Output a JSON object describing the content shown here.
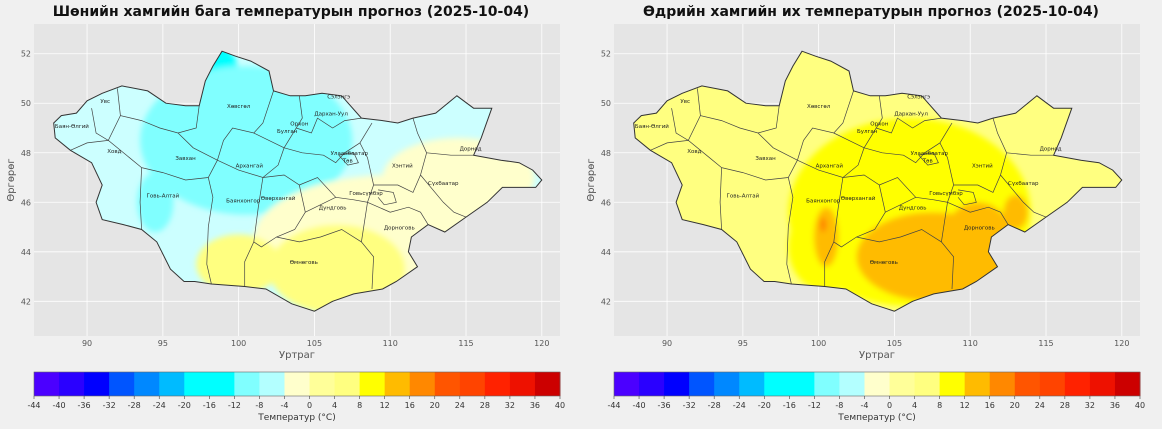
{
  "maps": [
    {
      "id": "min",
      "title": "Шөнийн хамгийн бага температурын прогноз (2025-10-04)",
      "base_fill": "#ccffff",
      "zones": [
        {
          "level": -12,
          "color": "#00ffff",
          "center": [
            98.5,
            50.8
          ],
          "r": [
            1.6,
            1.6
          ]
        },
        {
          "level": -12,
          "color": "#00ffff",
          "center": [
            101.5,
            47.6
          ],
          "r": [
            3.2,
            1.6
          ]
        },
        {
          "level": -8,
          "color": "#80ffff",
          "center": [
            100.5,
            48.5
          ],
          "r": [
            7.0,
            3.0
          ]
        },
        {
          "level": -8,
          "color": "#80ffff",
          "center": [
            94.5,
            46.0
          ],
          "r": [
            1.2,
            1.2
          ]
        },
        {
          "level": 0,
          "color": "#ffffcc",
          "center": [
            110.0,
            44.5
          ],
          "r": [
            9.0,
            2.6
          ]
        },
        {
          "level": 0,
          "color": "#ffffcc",
          "center": [
            114.5,
            47.0
          ],
          "r": [
            5.0,
            1.6
          ]
        },
        {
          "level": 4,
          "color": "#ffff80",
          "center": [
            106.5,
            43.3
          ],
          "r": [
            4.5,
            1.8
          ]
        },
        {
          "level": 4,
          "color": "#ffff80",
          "center": [
            100.0,
            43.5
          ],
          "r": [
            2.8,
            1.2
          ]
        }
      ]
    },
    {
      "id": "max",
      "title": "Өдрийн хамгийн их температурын прогноз (2025-10-04)",
      "base_fill": "#ffff80",
      "zones": [
        {
          "level": 12,
          "color": "#ffff00",
          "center": [
            106.0,
            45.6
          ],
          "r": [
            8.0,
            3.8
          ]
        },
        {
          "level": 12,
          "color": "#ffff00",
          "center": [
            100.5,
            44.2
          ],
          "r": [
            2.5,
            1.8
          ]
        },
        {
          "level": 16,
          "color": "#ffbb00",
          "center": [
            107.5,
            43.8
          ],
          "r": [
            5.0,
            1.8
          ]
        },
        {
          "level": 16,
          "color": "#ffbb00",
          "center": [
            110.5,
            44.6
          ],
          "r": [
            2.2,
            1.4
          ]
        },
        {
          "level": 16,
          "color": "#ffbb00",
          "center": [
            113.0,
            45.6
          ],
          "r": [
            0.8,
            0.7
          ]
        },
        {
          "level": 16,
          "color": "#ffbb00",
          "center": [
            100.5,
            44.6
          ],
          "r": [
            0.8,
            1.2
          ]
        },
        {
          "level": 20,
          "color": "#ff7f00",
          "center": [
            100.3,
            45.1
          ],
          "r": [
            0.2,
            0.3
          ]
        }
      ]
    }
  ],
  "aimags": [
    {
      "name": "Увс",
      "lon": 91.2,
      "lat": 50.0
    },
    {
      "name": "Баян-Өлгий",
      "lon": 89.0,
      "lat": 49.0
    },
    {
      "name": "Ховд",
      "lon": 91.8,
      "lat": 48.0
    },
    {
      "name": "Хөвсгөл",
      "lon": 100.0,
      "lat": 49.8
    },
    {
      "name": "Завхан",
      "lon": 96.5,
      "lat": 47.7
    },
    {
      "name": "Архангай",
      "lon": 100.7,
      "lat": 47.4
    },
    {
      "name": "Говь-Алтай",
      "lon": 95.0,
      "lat": 46.2
    },
    {
      "name": "Баянхонгор",
      "lon": 100.3,
      "lat": 46.0
    },
    {
      "name": "Өвөрхангай",
      "lon": 102.6,
      "lat": 46.1
    },
    {
      "name": "Сэлэнгэ",
      "lon": 106.6,
      "lat": 50.2
    },
    {
      "name": "Дархан-Уул",
      "lon": 106.1,
      "lat": 49.5
    },
    {
      "name": "Орхон",
      "lon": 104.0,
      "lat": 49.1
    },
    {
      "name": "Булган",
      "lon": 103.2,
      "lat": 48.8
    },
    {
      "name": "Улаанбаатар",
      "lon": 107.3,
      "lat": 47.9
    },
    {
      "name": "Төв",
      "lon": 107.2,
      "lat": 47.6
    },
    {
      "name": "Хэнтий",
      "lon": 110.8,
      "lat": 47.4
    },
    {
      "name": "Дорнод",
      "lon": 115.3,
      "lat": 48.1
    },
    {
      "name": "Сүхбаатар",
      "lon": 113.5,
      "lat": 46.7
    },
    {
      "name": "Говьсүмбэр",
      "lon": 108.4,
      "lat": 46.3
    },
    {
      "name": "Дундговь",
      "lon": 106.2,
      "lat": 45.7
    },
    {
      "name": "Дорноговь",
      "lon": 110.6,
      "lat": 44.9
    },
    {
      "name": "Өмнөговь",
      "lon": 104.3,
      "lat": 43.5
    }
  ],
  "axes": {
    "xlabel": "Уртраг",
    "ylabel": "Өргөрөг",
    "xlim": [
      86.5,
      121.2
    ],
    "ylim": [
      40.6,
      53.2
    ],
    "xticks": [
      90,
      95,
      100,
      105,
      110,
      115,
      120
    ],
    "yticks": [
      42,
      44,
      46,
      48,
      50,
      52
    ],
    "grid": true,
    "grid_color": "#ffffff",
    "plot_bg": "#e5e5e5"
  },
  "colorbar": {
    "label": "Температур (°C)",
    "bounds": [
      -44,
      -40,
      -36,
      -32,
      -28,
      -24,
      -20,
      -16,
      -12,
      -8,
      -4,
      0,
      4,
      8,
      12,
      16,
      20,
      24,
      28,
      32,
      36,
      40
    ],
    "colors": [
      "#4b00ff",
      "#2a00ff",
      "#0000ff",
      "#0055ff",
      "#0088ff",
      "#00bbff",
      "#00ffff",
      "#00ffff",
      "#80ffff",
      "#b3ffff",
      "#ffffcc",
      "#ffff99",
      "#ffff80",
      "#ffff00",
      "#ffbb00",
      "#ff8800",
      "#ff5500",
      "#ff4400",
      "#ff2200",
      "#ee1100",
      "#cc0000"
    ]
  }
}
